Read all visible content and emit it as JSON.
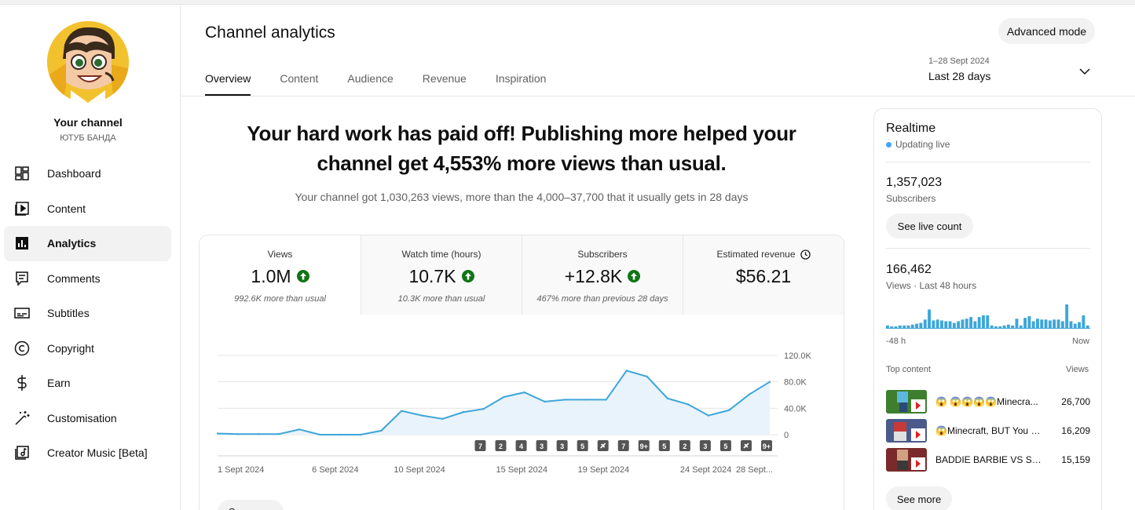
{
  "sidebar": {
    "channel_title": "Your channel",
    "channel_name": "ЮТУБ БАНДА",
    "items": [
      {
        "label": "Dashboard",
        "icon": "dashboard-icon"
      },
      {
        "label": "Content",
        "icon": "content-icon"
      },
      {
        "label": "Analytics",
        "icon": "analytics-icon",
        "active": true
      },
      {
        "label": "Comments",
        "icon": "comments-icon"
      },
      {
        "label": "Subtitles",
        "icon": "subtitles-icon"
      },
      {
        "label": "Copyright",
        "icon": "copyright-icon"
      },
      {
        "label": "Earn",
        "icon": "earn-icon"
      },
      {
        "label": "Customisation",
        "icon": "customisation-icon"
      },
      {
        "label": "Creator Music [Beta]",
        "icon": "creator-music-icon"
      }
    ]
  },
  "header": {
    "title": "Channel analytics",
    "advanced_mode": "Advanced mode",
    "tabs": [
      "Overview",
      "Content",
      "Audience",
      "Revenue",
      "Inspiration"
    ],
    "date_range": "1–28 Sept 2024",
    "date_label": "Last 28 days"
  },
  "main": {
    "headline": "Your hard work has paid off! Publishing more helped your channel get 4,553% more views than usual.",
    "subline": "Your channel got 1,030,263 views, more than the 4,000–37,700 that it usually gets in 28 days",
    "see_more": "See more",
    "metrics": [
      {
        "label": "Views",
        "value": "1.0M",
        "note": "992.6K more than usual",
        "trend": "up"
      },
      {
        "label": "Watch time (hours)",
        "value": "10.7K",
        "note": "10.3K more than usual",
        "trend": "up"
      },
      {
        "label": "Subscribers",
        "value": "+12.8K",
        "note": "467% more than previous 28 days",
        "trend": "up"
      },
      {
        "label": "Estimated revenue",
        "value": "$56.21",
        "note": "",
        "trend": "none"
      }
    ]
  },
  "chart_data": {
    "type": "area",
    "series": [
      {
        "values": [
          1800,
          1000,
          1000,
          1000,
          8000,
          0,
          0,
          0,
          6000,
          36000,
          29000,
          24000,
          34000,
          39000,
          57000,
          64000,
          50000,
          53000,
          53000,
          53000,
          97000,
          88000,
          55000,
          46000,
          29000,
          37000,
          61000,
          80000
        ]
      }
    ],
    "x": [
      "1 Sept 2024",
      "2",
      "3",
      "4",
      "5",
      "6 Sept 2024",
      "7",
      "8",
      "9",
      "10 Sept 2024",
      "11",
      "12",
      "13",
      "14",
      "15 Sept 2024",
      "16",
      "17",
      "18",
      "19 Sept 2024",
      "20",
      "21",
      "22",
      "23",
      "24 Sept 2024",
      "25",
      "26",
      "27",
      "28 Sept..."
    ],
    "x_tick_labels": [
      "1 Sept 2024",
      "6 Sept 2024",
      "10 Sept 2024",
      "15 Sept 2024",
      "19 Sept 2024",
      "24 Sept 2024",
      "28 Sept..."
    ],
    "x_tick_index": [
      0,
      5,
      9,
      14,
      18,
      23,
      27
    ],
    "y_ticks": [
      "120.0K",
      "80.0K",
      "40.0K",
      "0"
    ],
    "y_tick_values": [
      120000,
      80000,
      40000,
      0
    ],
    "ylim": [
      0,
      120000
    ],
    "grid": true,
    "color": "#3ea6d9",
    "fill": "#e8f3fb",
    "publish_markers": [
      {
        "index": 13,
        "label": "7"
      },
      {
        "index": 14,
        "label": "2"
      },
      {
        "index": 15,
        "label": "4"
      },
      {
        "index": 16,
        "label": "3"
      },
      {
        "index": 17,
        "label": "3"
      },
      {
        "index": 18,
        "label": "5"
      },
      {
        "index": 19,
        "label": "",
        "icon": "shorts-icon"
      },
      {
        "index": 20,
        "label": "7"
      },
      {
        "index": 21,
        "label": "9+"
      },
      {
        "index": 22,
        "label": "5"
      },
      {
        "index": 23,
        "label": "2"
      },
      {
        "index": 24,
        "label": "3"
      },
      {
        "index": 25,
        "label": "5"
      },
      {
        "index": 26,
        "label": "",
        "icon": "shorts-icon"
      },
      {
        "index": 27,
        "label": "9+"
      }
    ]
  },
  "realtime": {
    "title": "Realtime",
    "live": "Updating live",
    "subscribers": "1,357,023",
    "subscribers_label": "Subscribers",
    "see_live_count": "See live count",
    "views": "166,462",
    "views_label": "Views · Last 48 hours",
    "axis_start": "-48 h",
    "axis_end": "Now",
    "bars": [
      3,
      2,
      2,
      3,
      3,
      3,
      4,
      5,
      6,
      10,
      22,
      9,
      10,
      9,
      8,
      8,
      6,
      8,
      10,
      11,
      13,
      8,
      13,
      15,
      15,
      3,
      2,
      2,
      3,
      4,
      3,
      11,
      3,
      12,
      14,
      8,
      11,
      10,
      10,
      9,
      10,
      10,
      8,
      28,
      8,
      5,
      7,
      15,
      3
    ],
    "top_content_label": "Top content",
    "views_col_label": "Views",
    "top_content": [
      {
        "title": "😱 😱😱😱😱Minecra...",
        "views": "26,700"
      },
      {
        "title": "😱Minecraft, BUT You C...",
        "views": "16,209"
      },
      {
        "title": "BADDIE BARBIE VS SPI...",
        "views": "15,159"
      }
    ],
    "see_more": "See more"
  }
}
